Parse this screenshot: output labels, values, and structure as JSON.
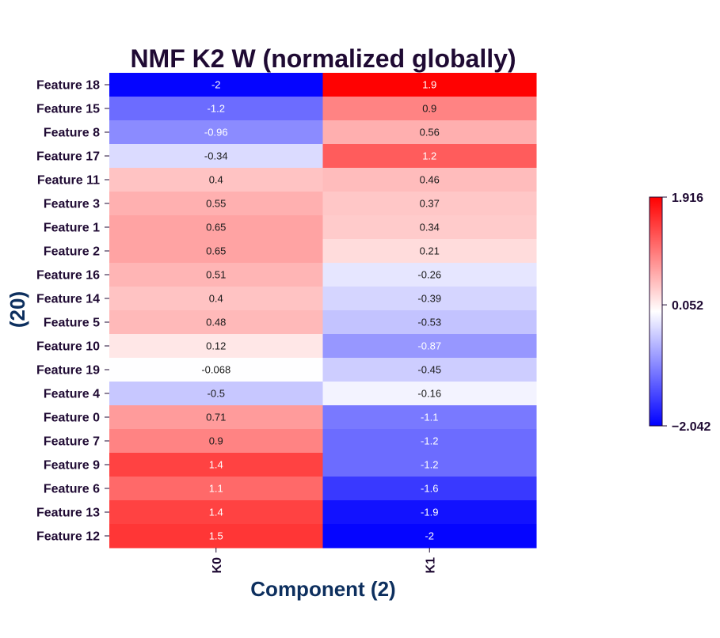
{
  "chart_data": {
    "type": "heatmap",
    "title": "NMF K2 W (normalized globally)",
    "xlabel": "Component (2)",
    "ylabel": "(20)",
    "columns": [
      "K0",
      "K1"
    ],
    "rows": [
      {
        "label": "Feature 18",
        "values": [
          -2,
          1.9
        ],
        "texts": [
          "-2",
          "1.9"
        ]
      },
      {
        "label": "Feature 15",
        "values": [
          -1.2,
          0.9
        ],
        "texts": [
          "-1.2",
          "0.9"
        ]
      },
      {
        "label": "Feature 8",
        "values": [
          -0.96,
          0.56
        ],
        "texts": [
          "-0.96",
          "0.56"
        ]
      },
      {
        "label": "Feature 17",
        "values": [
          -0.34,
          1.2
        ],
        "texts": [
          "-0.34",
          "1.2"
        ]
      },
      {
        "label": "Feature 11",
        "values": [
          0.4,
          0.46
        ],
        "texts": [
          "0.4",
          "0.46"
        ]
      },
      {
        "label": "Feature 3",
        "values": [
          0.55,
          0.37
        ],
        "texts": [
          "0.55",
          "0.37"
        ]
      },
      {
        "label": "Feature 1",
        "values": [
          0.65,
          0.34
        ],
        "texts": [
          "0.65",
          "0.34"
        ]
      },
      {
        "label": "Feature 2",
        "values": [
          0.65,
          0.21
        ],
        "texts": [
          "0.65",
          "0.21"
        ]
      },
      {
        "label": "Feature 16",
        "values": [
          0.51,
          -0.26
        ],
        "texts": [
          "0.51",
          "-0.26"
        ]
      },
      {
        "label": "Feature 14",
        "values": [
          0.4,
          -0.39
        ],
        "texts": [
          "0.4",
          "-0.39"
        ]
      },
      {
        "label": "Feature 5",
        "values": [
          0.48,
          -0.53
        ],
        "texts": [
          "0.48",
          "-0.53"
        ]
      },
      {
        "label": "Feature 10",
        "values": [
          0.12,
          -0.87
        ],
        "texts": [
          "0.12",
          "-0.87"
        ]
      },
      {
        "label": "Feature 19",
        "values": [
          -0.068,
          -0.45
        ],
        "texts": [
          "-0.068",
          "-0.45"
        ]
      },
      {
        "label": "Feature 4",
        "values": [
          -0.5,
          -0.16
        ],
        "texts": [
          "-0.5",
          "-0.16"
        ]
      },
      {
        "label": "Feature 0",
        "values": [
          0.71,
          -1.1
        ],
        "texts": [
          "0.71",
          "-1.1"
        ]
      },
      {
        "label": "Feature 7",
        "values": [
          0.9,
          -1.2
        ],
        "texts": [
          "0.9",
          "-1.2"
        ]
      },
      {
        "label": "Feature 9",
        "values": [
          1.4,
          -1.2
        ],
        "texts": [
          "1.4",
          "-1.2"
        ]
      },
      {
        "label": "Feature 6",
        "values": [
          1.1,
          -1.6
        ],
        "texts": [
          "1.1",
          "-1.6"
        ]
      },
      {
        "label": "Feature 13",
        "values": [
          1.4,
          -1.9
        ],
        "texts": [
          "1.4",
          "-1.9"
        ]
      },
      {
        "label": "Feature 12",
        "values": [
          1.5,
          -2
        ],
        "texts": [
          "1.5",
          "-2"
        ]
      }
    ],
    "colormap": {
      "name": "bwr",
      "min_color": "#0000ff",
      "mid_color": "#ffffff",
      "max_color": "#ff0000"
    },
    "colorbar": {
      "min": -2.042,
      "center": 0.052,
      "max": 1.916,
      "tick_labels": [
        "1.916",
        "0.052",
        "−2.042"
      ]
    },
    "legend_position": "right"
  }
}
